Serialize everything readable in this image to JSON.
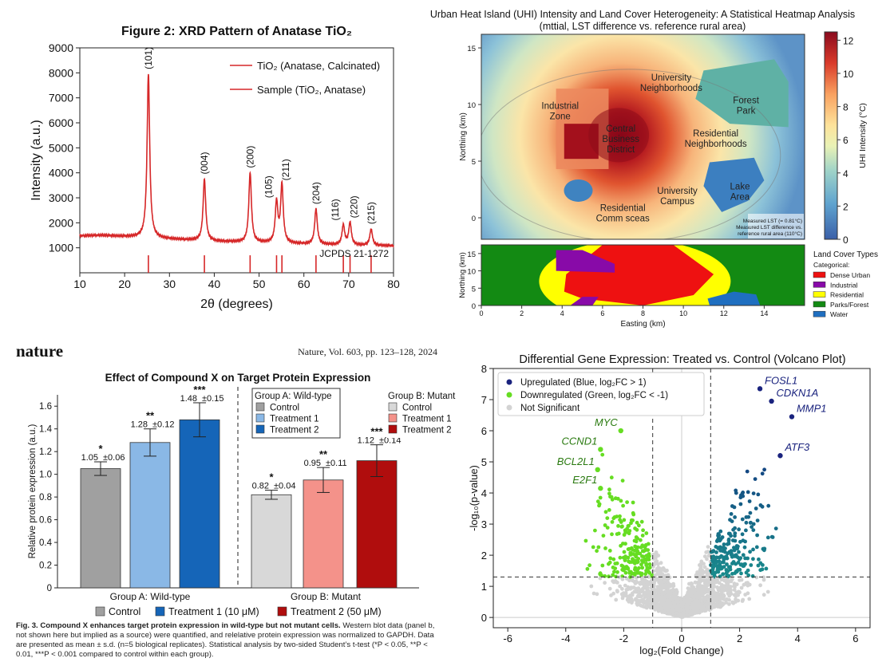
{
  "chart_data": [
    {
      "id": "xrd",
      "type": "line",
      "title": "Figure 2: XRD Pattern of Anatase TiO₂",
      "xlabel": "2θ (degrees)",
      "ylabel": "Intensity (a.u.)",
      "xlim": [
        10,
        80
      ],
      "ylim": [
        0,
        9000
      ],
      "xticks": [
        10,
        20,
        30,
        40,
        50,
        60,
        70,
        80
      ],
      "yticks": [
        1000,
        2000,
        3000,
        4000,
        5000,
        6000,
        7000,
        8000,
        9000
      ],
      "grid": false,
      "legend_placement": "top-right",
      "legend": [
        "TiO₂ (Anatase, Calcinated)",
        "Sample (TiO₂, Anatase)"
      ],
      "color": "#d62728",
      "baseline": [
        [
          10,
          1480
        ],
        [
          15,
          1500
        ],
        [
          20,
          1450
        ],
        [
          30,
          1350
        ],
        [
          40,
          1260
        ],
        [
          50,
          1200
        ],
        [
          60,
          1150
        ],
        [
          70,
          1100
        ],
        [
          80,
          1080
        ]
      ],
      "peaks": [
        {
          "two_theta": 25.3,
          "intensity": 7950,
          "label": "(101)"
        },
        {
          "two_theta": 37.8,
          "intensity": 3750,
          "label": "(004)"
        },
        {
          "two_theta": 48.0,
          "intensity": 4000,
          "label": "(200)"
        },
        {
          "two_theta": 53.9,
          "intensity": 2800,
          "label": "(105)"
        },
        {
          "two_theta": 55.1,
          "intensity": 3500,
          "label": "(211)"
        },
        {
          "two_theta": 62.7,
          "intensity": 2550,
          "label": "(204)"
        },
        {
          "two_theta": 68.8,
          "intensity": 1900,
          "label": "(116)"
        },
        {
          "two_theta": 70.3,
          "intensity": 2000,
          "label": "(220)"
        },
        {
          "two_theta": 75.0,
          "intensity": 1750,
          "label": "(215)"
        }
      ],
      "reference_label": "JCPDS 21-1272",
      "reference_lines": [
        25.3,
        37.8,
        48.0,
        53.9,
        55.1,
        62.7,
        68.8,
        70.3,
        75.0
      ],
      "reference_height": 700
    },
    {
      "id": "uhi",
      "type": "heatmap",
      "title": "Urban Heat Island (UHI) Intensity and Land Cover Heterogeneity: A Statistical Heatmap Analysis",
      "subtitle": "(mttial, LST difference vs. reference rural area)",
      "xlabel": "Easting (km)",
      "ylabel": "Northing (km)",
      "xlim": [
        0,
        16
      ],
      "ylim": [
        -1.9,
        16.2
      ],
      "xticks": [
        0,
        2,
        4,
        6,
        8,
        10,
        12,
        14
      ],
      "yticks": [
        0,
        5,
        10,
        15
      ],
      "colorbar": {
        "label": "UHI Intensity (°C)",
        "range": [
          0,
          12.5
        ],
        "ticks": [
          0,
          2,
          4,
          6,
          8,
          10,
          12
        ],
        "colormap": "RdYlBu_r"
      },
      "regions": [
        {
          "name": "Industrial Zone",
          "lines": [
            "Industrial",
            "Zone"
          ],
          "x": 3.9,
          "y": 9.6
        },
        {
          "name": "Central Business District",
          "lines": [
            "Central",
            "Business",
            "District"
          ],
          "x": 6.9,
          "y": 7.6
        },
        {
          "name": "University Neighborhoods",
          "lines": [
            "University",
            "Neighborhoods"
          ],
          "x": 9.4,
          "y": 12.1
        },
        {
          "name": "Forest Park",
          "lines": [
            "Forest",
            "Park"
          ],
          "x": 13.1,
          "y": 10.1
        },
        {
          "name": "Residential Neighborhoods",
          "lines": [
            "Residential",
            "Neighborhoods"
          ],
          "x": 11.6,
          "y": 7.2
        },
        {
          "name": "University Campus",
          "lines": [
            "University",
            "Campus"
          ],
          "x": 9.7,
          "y": 2.1
        },
        {
          "name": "Lake Area",
          "lines": [
            "Lake",
            "Area"
          ],
          "x": 12.8,
          "y": 2.5
        },
        {
          "name": "Residential Comm sceas",
          "lines": [
            "Residential",
            "Comm sceas"
          ],
          "x": 7.0,
          "y": 0.6
        }
      ],
      "annotation": [
        "Measured LST (= 0.81°C)",
        "Measured LST difference vs.",
        "reference rural area (110°C)"
      ],
      "landcover": {
        "ylabel": "Northing (km)",
        "ylim": [
          0,
          17.5
        ],
        "yticks": [
          0,
          5,
          10,
          15
        ],
        "legend_title": "Land Cover Types",
        "legend_subtitle": "Categorical:",
        "classes": [
          {
            "name": "Dense Urban",
            "color": "#ee1111"
          },
          {
            "name": "Industrial",
            "color": "#880aa8"
          },
          {
            "name": "Residential",
            "color": "#ffff00"
          },
          {
            "name": "Parks/Forest",
            "color": "#138a13"
          },
          {
            "name": "Water",
            "color": "#1f6fc0"
          }
        ]
      }
    },
    {
      "id": "protein",
      "type": "bar",
      "journal": "nature",
      "citation": "Nature, Vol. 603, pp. 123–128, 2024",
      "title": "Effect of Compound X on Target Protein Expression",
      "ylabel": "Relative protein expression (a.u.)",
      "ylim": [
        0,
        1.7
      ],
      "yticks": [
        0,
        0.2,
        0.4,
        0.6,
        0.8,
        1.0,
        1.2,
        1.4,
        1.6
      ],
      "groups": [
        {
          "name": "Group A: Wild-type",
          "legend_title": "Group A: Wild-type",
          "bars": [
            {
              "name": "Control",
              "value": 1.05,
              "error": 0.06,
              "sig": "*",
              "color": "#a0a0a0"
            },
            {
              "name": "Treatment 1",
              "value": 1.28,
              "error": 0.12,
              "sig": "**",
              "color": "#8ab8e6"
            },
            {
              "name": "Treatment 2",
              "value": 1.48,
              "error": 0.15,
              "sig": "***",
              "color": "#1565b8"
            }
          ]
        },
        {
          "name": "Group B: Mutant",
          "legend_title": "Group B: Mutant",
          "bars": [
            {
              "name": "Control",
              "value": 0.82,
              "error": 0.04,
              "sig": "*",
              "color": "#d8d8d8"
            },
            {
              "name": "Treatment 1",
              "value": 0.95,
              "error": 0.11,
              "sig": "**",
              "color": "#f4928a"
            },
            {
              "name": "Treatment 2",
              "value": 1.12,
              "error": 0.14,
              "sig": "***",
              "color": "#b00d0d"
            }
          ]
        }
      ],
      "bottom_legend": [
        {
          "name": "Control",
          "color": "#a0a0a0"
        },
        {
          "name": "Treatment 1 (10 μM)",
          "color": "#1565b8"
        },
        {
          "name": "Treatment 2 (50 μM)",
          "color": "#b00d0d"
        }
      ],
      "caption_bold": "Fig. 3. Compound X enhances target protein expression in wild-type but not mutant cells.",
      "caption_text": " Western blot data (panel b, not shown here but implied as a source) were quantified, and relelative protein expression was normalized to GAPDH. Data are presented as mean ± s.d. (n=5 biological replicates). Statistical analysis by two-sided Student’s t-test (*P < 0.05, **P < 0.01, ***P < 0.001 compared to control within each group)."
    },
    {
      "id": "volcano",
      "type": "scatter",
      "title": "Differential Gene Expression: Treated vs. Control (Volcano Plot)",
      "xlabel": "log₂(Fold Change)",
      "ylabel": "-log₁₀(p-value)",
      "xlim": [
        -6.5,
        6.5
      ],
      "ylim": [
        -0.33,
        8
      ],
      "xticks": [
        -6,
        -4,
        -2,
        0,
        2,
        4,
        6
      ],
      "yticks": [
        0,
        1,
        2,
        3,
        4,
        5,
        6,
        7,
        8
      ],
      "thresholds": {
        "log2fc": [
          -1,
          1
        ],
        "neglog10p": 1.3
      },
      "legend_placement": "top-left",
      "legend": [
        {
          "name": "Upregulated (Blue, log₂FC > 1)",
          "color": "#1a237e"
        },
        {
          "name": "Downregulated (Green, log₂FC < -1)",
          "color": "#66dd22"
        },
        {
          "name": "Not Significant",
          "color": "#d3d3d3"
        }
      ],
      "labeled_genes": [
        {
          "gene": "FOSL1",
          "x": 2.7,
          "y": 7.35,
          "group": "up"
        },
        {
          "gene": "CDKN1A",
          "x": 3.1,
          "y": 6.95,
          "group": "up"
        },
        {
          "gene": "MMP1",
          "x": 3.8,
          "y": 6.45,
          "group": "up"
        },
        {
          "gene": "ATF3",
          "x": 3.4,
          "y": 5.2,
          "group": "up"
        },
        {
          "gene": "MYC",
          "x": -2.1,
          "y": 6.0,
          "group": "down"
        },
        {
          "gene": "CCND1",
          "x": -2.8,
          "y": 5.4,
          "group": "down"
        },
        {
          "gene": "BCL2L1",
          "x": -2.9,
          "y": 4.75,
          "group": "down"
        },
        {
          "gene": "E2F1",
          "x": -2.8,
          "y": 4.15,
          "group": "down"
        }
      ]
    }
  ]
}
